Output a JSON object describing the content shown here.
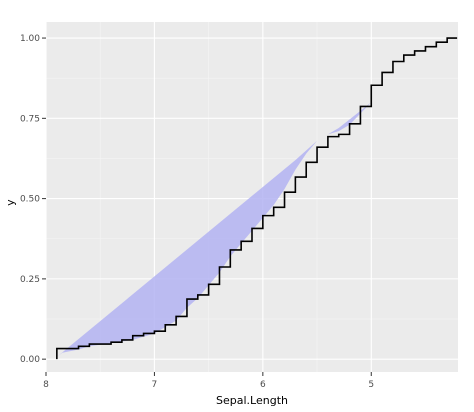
{
  "chart_data": {
    "type": "area",
    "xlabel": "Sepal.Length",
    "ylabel": "y",
    "x_axis_reversed": true,
    "xlim": [
      8.0,
      4.2
    ],
    "ylim": [
      -0.04,
      1.05
    ],
    "x_ticks": [
      8,
      7,
      6,
      5
    ],
    "x_tick_labels": [
      "8",
      "7",
      "6",
      "5"
    ],
    "y_ticks": [
      0,
      0.25,
      0.5,
      0.75,
      1.0
    ],
    "y_tick_labels": [
      "0.00",
      "0.25",
      "0.50",
      "0.75",
      "1.00"
    ],
    "grid": true,
    "legend": "none",
    "series": [
      {
        "kind": "ribbon",
        "color": "#b3b3f2",
        "points": [
          [
            7.9,
            0.007
          ],
          [
            7.85,
            0.02
          ],
          [
            7.7,
            0.03
          ],
          [
            7.6,
            0.04
          ],
          [
            7.4,
            0.05
          ],
          [
            7.2,
            0.06
          ],
          [
            7.0,
            0.08
          ],
          [
            6.9,
            0.1
          ],
          [
            6.8,
            0.12
          ],
          [
            6.7,
            0.16
          ],
          [
            6.6,
            0.19
          ],
          [
            6.5,
            0.23
          ],
          [
            6.4,
            0.27
          ],
          [
            6.3,
            0.32
          ],
          [
            6.2,
            0.36
          ],
          [
            6.1,
            0.4
          ],
          [
            6.0,
            0.44
          ],
          [
            5.9,
            0.48
          ],
          [
            5.8,
            0.53
          ],
          [
            5.7,
            0.59
          ],
          [
            5.6,
            0.64
          ],
          [
            5.5,
            0.68
          ],
          [
            5.4,
            0.7
          ],
          [
            5.3,
            0.71
          ],
          [
            5.2,
            0.73
          ],
          [
            5.0,
            0.8
          ],
          [
            4.3,
            1.0
          ]
        ],
        "upper_line": [
          [
            7.9,
            0.007
          ],
          [
            5.7,
            0.62
          ],
          [
            5.5,
            0.68
          ],
          [
            5.3,
            0.72
          ],
          [
            5.0,
            0.8
          ],
          [
            4.3,
            1.0
          ]
        ]
      },
      {
        "kind": "step",
        "color": "#000000",
        "x": [
          7.9,
          7.7,
          7.6,
          7.4,
          7.3,
          7.2,
          7.1,
          7.0,
          6.9,
          6.8,
          6.7,
          6.6,
          6.5,
          6.4,
          6.3,
          6.2,
          6.1,
          6.0,
          5.9,
          5.8,
          5.7,
          5.6,
          5.5,
          5.4,
          5.3,
          5.2,
          5.1,
          5.0,
          4.9,
          4.8,
          4.7,
          4.6,
          4.5,
          4.4,
          4.3
        ],
        "y": [
          0.033,
          0.04,
          0.047,
          0.053,
          0.06,
          0.073,
          0.08,
          0.087,
          0.107,
          0.133,
          0.187,
          0.2,
          0.233,
          0.287,
          0.34,
          0.367,
          0.407,
          0.447,
          0.473,
          0.52,
          0.567,
          0.613,
          0.66,
          0.693,
          0.7,
          0.733,
          0.787,
          0.853,
          0.893,
          0.927,
          0.947,
          0.96,
          0.973,
          0.987,
          1.0
        ]
      }
    ]
  }
}
